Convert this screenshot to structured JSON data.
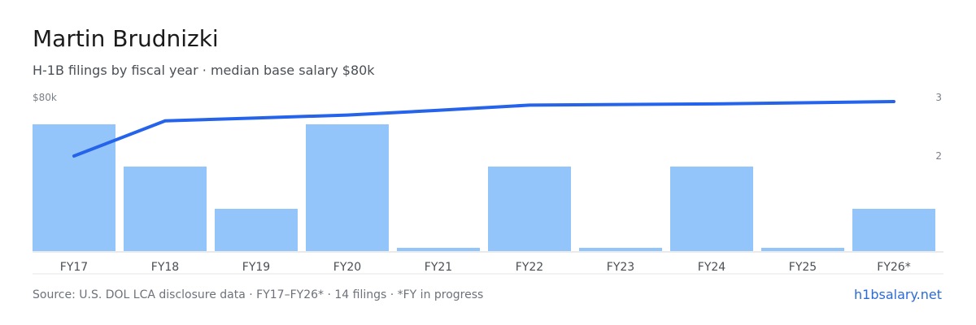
{
  "header": {
    "title": "Martin Brudnizki",
    "subtitle": "H-1B filings by fiscal year · median base salary $80k"
  },
  "footer": {
    "source": "Source: U.S. DOL LCA disclosure data · FY17–FY26* · 14 filings · *FY in progress",
    "brand": "h1bsalary.net"
  },
  "colors": {
    "bar": "#93c5fb",
    "line": "#2563eb",
    "baseline": "#d0d4d9"
  },
  "chart_data": {
    "type": "bar",
    "categories": [
      "FY17",
      "FY18",
      "FY19",
      "FY20",
      "FY21",
      "FY22",
      "FY23",
      "FY24",
      "FY25",
      "FY26*"
    ],
    "series": [
      {
        "values": [
          3,
          2,
          1,
          3,
          0,
          2,
          0,
          2,
          0,
          1
        ]
      },
      {
        "values": [
          2,
          2.6,
          2.65,
          2.7,
          2.78,
          2.87,
          2.88,
          2.89,
          2.91,
          2.93
        ]
      }
    ],
    "left_axis_label": "$80k",
    "right_axis_ticks": [
      {
        "value": 2,
        "label": "2"
      },
      {
        "value": 3,
        "label": "3"
      }
    ],
    "ylim": [
      0,
      3
    ]
  }
}
